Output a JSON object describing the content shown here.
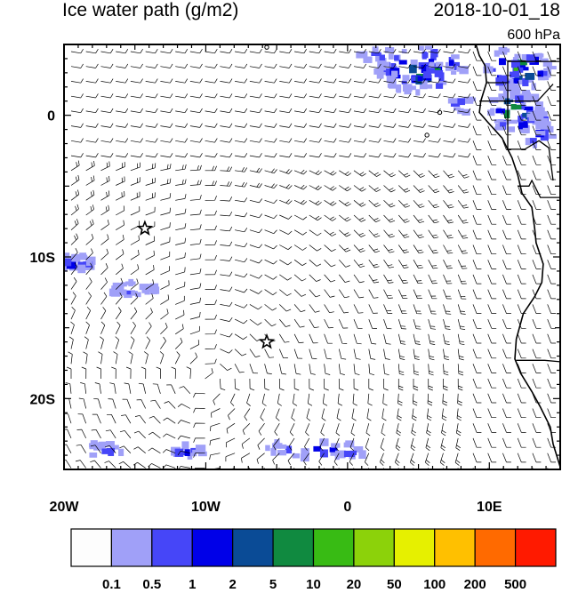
{
  "title": "Ice water path (g/m2)",
  "datetime": "2018-10-01_18",
  "level": "600 hPa",
  "axes": {
    "lon_ticks": [
      {
        "lon": -20,
        "label": "20W"
      },
      {
        "lon": -10,
        "label": "10W"
      },
      {
        "lon": 0,
        "label": "0"
      },
      {
        "lon": 10,
        "label": "10E"
      }
    ],
    "lat_ticks": [
      {
        "lat": 0,
        "label": "0"
      },
      {
        "lat": -10,
        "label": "10S"
      },
      {
        "lat": -20,
        "label": "20S"
      }
    ],
    "lon_range": [
      -20,
      15
    ],
    "lat_range": [
      -25,
      5
    ]
  },
  "markers": [
    {
      "name": "star-marker-1",
      "lon": -14.3,
      "lat": -8.0
    },
    {
      "name": "star-marker-2",
      "lon": -5.7,
      "lat": -16.0
    }
  ],
  "colorbar": {
    "labels": [
      "0.1",
      "0.5",
      "1",
      "2",
      "5",
      "10",
      "20",
      "50",
      "100",
      "200",
      "500"
    ],
    "colors": [
      "#fdfdfd",
      "#a0a0f8",
      "#4646f8",
      "#0000e8",
      "#0a4b96",
      "#108a40",
      "#38bb14",
      "#8cd20a",
      "#e6f000",
      "#ffc000",
      "#ff6a00",
      "#ff1a00"
    ]
  }
}
